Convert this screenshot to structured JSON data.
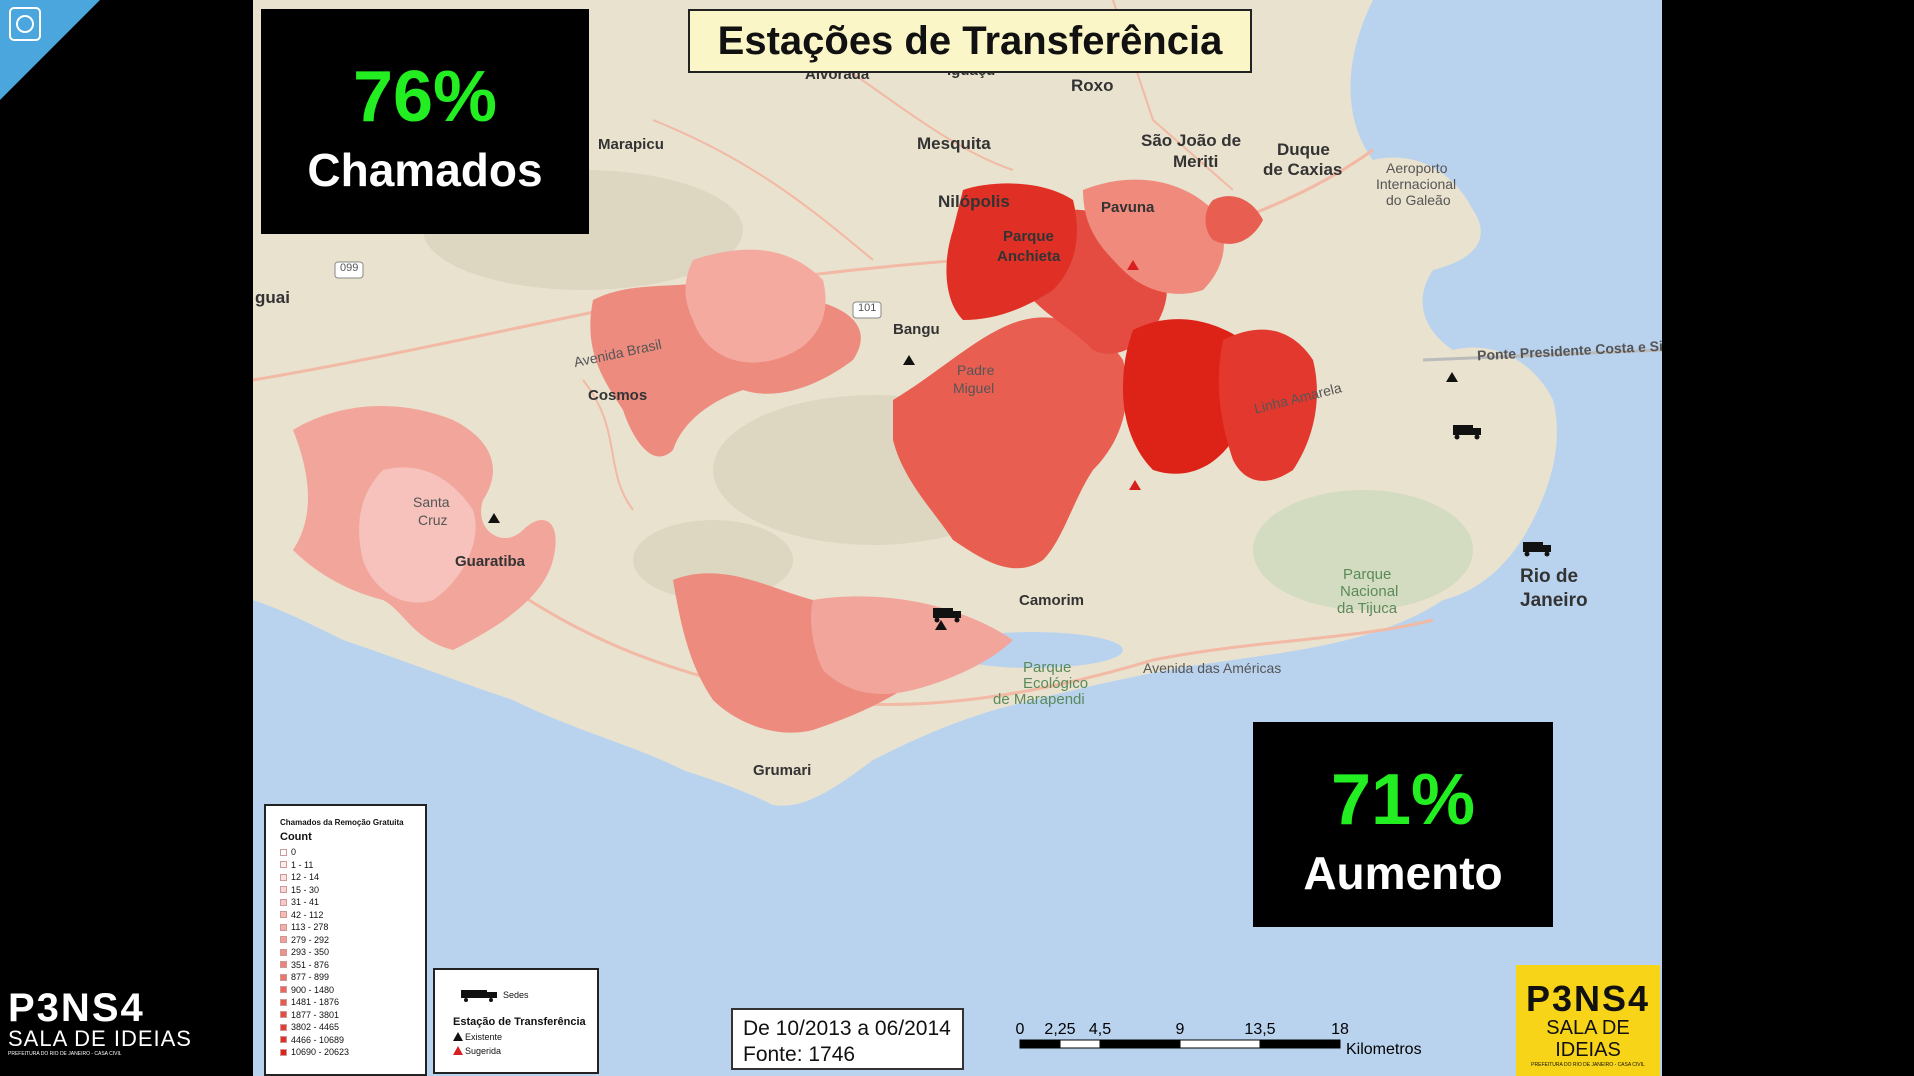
{
  "title": "Estações de Transferência",
  "stats": [
    {
      "value": "76%",
      "label": "Chamados"
    },
    {
      "value": "71%",
      "label": "Aumento"
    }
  ],
  "place_labels": {
    "alvorada": "Alvorada",
    "iguacu": "Iguaçu",
    "roxo": "Roxo",
    "marapicu": "Marapicu",
    "mesquita": "Mesquita",
    "sao_joao": "São João de",
    "meriti": "Meriti",
    "duque": "Duque",
    "de_caxias": "de Caxias",
    "aeroporto": "Aeroporto",
    "internacional": "Internacional",
    "do_galeao": "do Galeão",
    "nilopolis": "Nilópolis",
    "pavuna": "Pavuna",
    "parque": "Parque",
    "anchieta": "Anchieta",
    "guai": "guai",
    "bangu": "Bangu",
    "padre": "Padre",
    "miguel": "Miguel",
    "cosmos": "Cosmos",
    "santa": "Santa",
    "cruz": "Cruz",
    "guaratiba": "Guaratiba",
    "camorim": "Camorim",
    "parque_nacional": "Parque",
    "nacional": "Nacional",
    "da_tijuca": "da Tijuca",
    "rio_de": "Rio de",
    "janeiro": "Janeiro",
    "grumari": "Grumari",
    "parque_eco": "Parque",
    "ecologico": "Ecológico",
    "de_marapendi": "de Marapendi",
    "avenida_brasil": "Avenida Brasil",
    "avenida_americas": "Avenida das Américas",
    "ponte": "Ponte Presidente Costa e Silva",
    "linha_amarela": "Linha Amarela",
    "route_099": "099",
    "route_101": "101"
  },
  "legend": {
    "title": "Chamados da Remoção Gratuita",
    "count_label": "Count",
    "classes": [
      {
        "label": "0",
        "color": "#ffffff"
      },
      {
        "label": "1 - 11",
        "color": "#fdeeee"
      },
      {
        "label": "12 - 14",
        "color": "#fbe2e1"
      },
      {
        "label": "15 - 30",
        "color": "#f9d6d4"
      },
      {
        "label": "31 - 41",
        "color": "#f7c9c6"
      },
      {
        "label": "42 - 112",
        "color": "#f5bbb7"
      },
      {
        "label": "113 - 278",
        "color": "#f3aea8"
      },
      {
        "label": "279 - 292",
        "color": "#f1a099"
      },
      {
        "label": "293 - 350",
        "color": "#ef928a"
      },
      {
        "label": "351 - 876",
        "color": "#ed847b"
      },
      {
        "label": "877 - 899",
        "color": "#eb766c"
      },
      {
        "label": "900 - 1480",
        "color": "#e9685d"
      },
      {
        "label": "1481 - 1876",
        "color": "#e75a4f"
      },
      {
        "label": "1877 - 3801",
        "color": "#e54c41"
      },
      {
        "label": "3802 - 4465",
        "color": "#e33e33"
      },
      {
        "label": "4466 - 10689",
        "color": "#e03025"
      },
      {
        "label": "10690 - 20623",
        "color": "#dd2218"
      }
    ],
    "sedes_label": "Sedes",
    "station_title": "Estação de Transferência",
    "existente_label": "Existente",
    "sugerida_label": "Sugerida"
  },
  "date_box": {
    "line1": "De 10/2013 a 06/2014",
    "line2": "Fonte: 1746"
  },
  "scale_bar": {
    "ticks": [
      "0",
      "2,25",
      "4,5",
      "9",
      "13,5",
      "18"
    ],
    "unit": "Kilometros"
  },
  "logo_left": {
    "name": "P3NS4",
    "subtitle": "SALA DE IDEIAS",
    "tagline": "PREFEITURA DO RIO DE JANEIRO - CASA CIVIL"
  },
  "logo_right": {
    "name": "P3NS4",
    "subtitle": "SALA DE IDEIAS",
    "tagline": "PREFEITURA DO RIO DE JANEIRO - CASA CIVIL"
  },
  "colors": {
    "stat_green": "#22ee22",
    "title_bg": "#fbf6c8",
    "water": "#b9d3ef",
    "land": "#e9e2cf",
    "logo_yellow": "#f7d417"
  }
}
